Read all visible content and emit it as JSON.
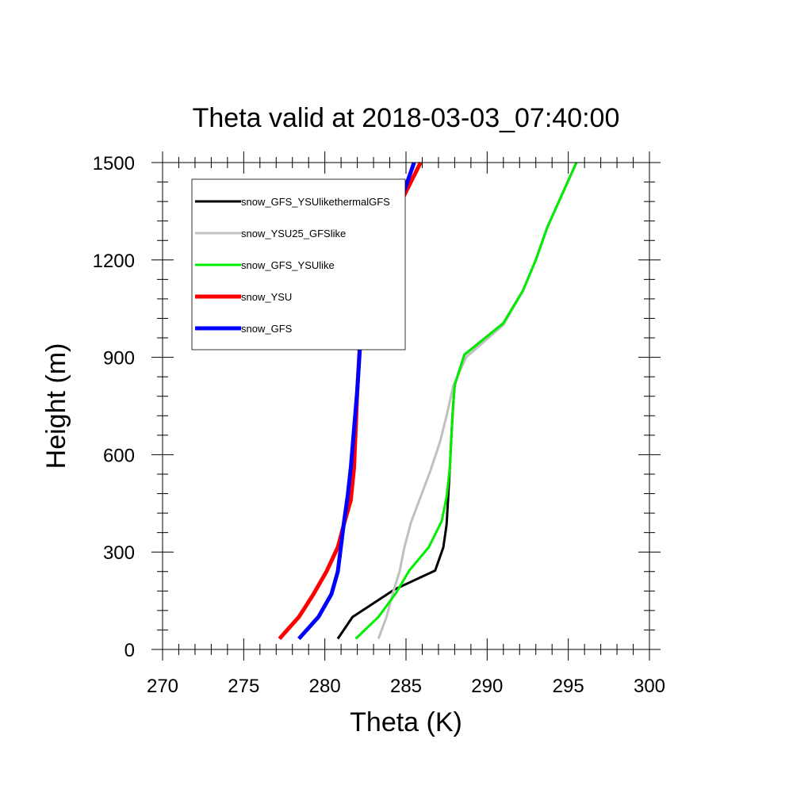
{
  "chart_data": {
    "type": "line",
    "title": "Theta valid at 2018-03-03_07:40:00",
    "xlabel": "Theta (K)",
    "ylabel": "Height (m)",
    "xlim": [
      270,
      300
    ],
    "ylim": [
      0,
      1500
    ],
    "xticks": [
      "270",
      "275",
      "280",
      "285",
      "290",
      "295",
      "300"
    ],
    "yticks": [
      "0",
      "300",
      "600",
      "900",
      "1200",
      "1500"
    ],
    "legend_position": "top-left",
    "series": [
      {
        "name": "snow_GFS_YSUlikethermalGFS",
        "color": "#000000",
        "width": 3,
        "points": [
          [
            280.8,
            33
          ],
          [
            281.7,
            100
          ],
          [
            284.3,
            185
          ],
          [
            286.8,
            243
          ],
          [
            287.3,
            315
          ],
          [
            287.5,
            385
          ],
          [
            287.6,
            470
          ],
          [
            287.7,
            560
          ],
          [
            287.8,
            660
          ],
          [
            287.9,
            750
          ],
          [
            288.0,
            815
          ],
          [
            288.6,
            908
          ],
          [
            291.0,
            1005
          ],
          [
            292.2,
            1105
          ],
          [
            293.0,
            1200
          ],
          [
            293.7,
            1300
          ],
          [
            294.6,
            1400
          ],
          [
            295.5,
            1500
          ]
        ]
      },
      {
        "name": "snow_YSU25_GFSlike",
        "color": "#c0c0c0",
        "width": 3,
        "points": [
          [
            283.3,
            33
          ],
          [
            283.8,
            100
          ],
          [
            284.2,
            175
          ],
          [
            284.6,
            240
          ],
          [
            284.9,
            315
          ],
          [
            285.3,
            390
          ],
          [
            285.9,
            470
          ],
          [
            286.5,
            550
          ],
          [
            287.1,
            640
          ],
          [
            287.5,
            720
          ],
          [
            287.9,
            810
          ],
          [
            288.7,
            900
          ],
          [
            291.0,
            1000
          ],
          [
            292.2,
            1105
          ],
          [
            293.0,
            1200
          ],
          [
            293.7,
            1300
          ],
          [
            294.6,
            1400
          ],
          [
            295.5,
            1500
          ]
        ]
      },
      {
        "name": "snow_GFS_YSUlike",
        "color": "#00ee00",
        "width": 3,
        "points": [
          [
            281.9,
            33
          ],
          [
            283.3,
            100
          ],
          [
            284.4,
            175
          ],
          [
            285.2,
            243
          ],
          [
            286.4,
            315
          ],
          [
            287.2,
            395
          ],
          [
            287.5,
            470
          ],
          [
            287.7,
            560
          ],
          [
            287.8,
            660
          ],
          [
            287.9,
            750
          ],
          [
            288.0,
            815
          ],
          [
            288.6,
            908
          ],
          [
            291.0,
            1005
          ],
          [
            292.2,
            1105
          ],
          [
            293.0,
            1200
          ],
          [
            293.7,
            1300
          ],
          [
            294.6,
            1400
          ],
          [
            295.5,
            1500
          ]
        ]
      },
      {
        "name": "snow_YSU",
        "color": "#ff0000",
        "width": 5,
        "points": [
          [
            277.2,
            33
          ],
          [
            278.4,
            100
          ],
          [
            279.3,
            170
          ],
          [
            280.1,
            240
          ],
          [
            280.8,
            315
          ],
          [
            281.2,
            390
          ],
          [
            281.6,
            460
          ],
          [
            281.8,
            560
          ],
          [
            281.9,
            680
          ],
          [
            282.0,
            800
          ],
          [
            282.2,
            980
          ],
          [
            282.5,
            1085
          ],
          [
            283.1,
            1195
          ],
          [
            284.3,
            1340
          ],
          [
            285.3,
            1440
          ],
          [
            285.9,
            1500
          ]
        ]
      },
      {
        "name": "snow_GFS",
        "color": "#0000ff",
        "width": 5,
        "points": [
          [
            278.4,
            33
          ],
          [
            279.6,
            100
          ],
          [
            280.4,
            170
          ],
          [
            280.8,
            240
          ],
          [
            281.0,
            320
          ],
          [
            281.2,
            400
          ],
          [
            281.4,
            470
          ],
          [
            281.6,
            560
          ],
          [
            281.8,
            680
          ],
          [
            282.0,
            800
          ],
          [
            282.2,
            960
          ],
          [
            282.6,
            1090
          ],
          [
            283.3,
            1300
          ],
          [
            284.9,
            1415
          ],
          [
            285.5,
            1500
          ]
        ]
      }
    ]
  }
}
